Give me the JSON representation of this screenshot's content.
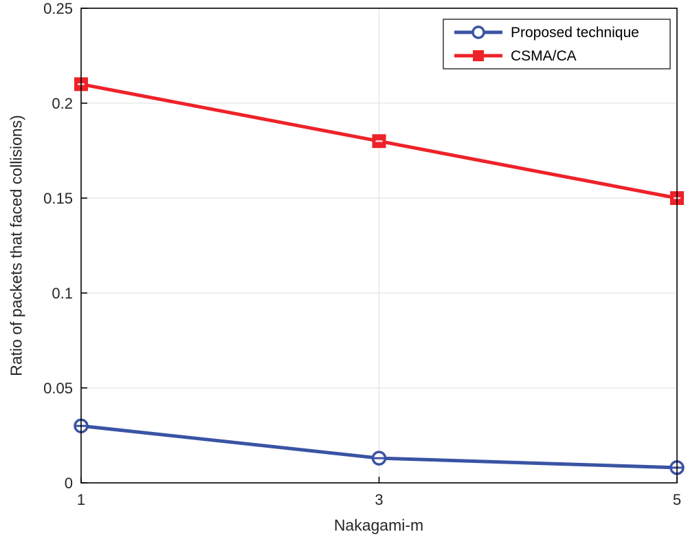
{
  "chart_data": {
    "type": "line",
    "x": [
      1,
      3,
      5
    ],
    "series": [
      {
        "name": "Proposed technique",
        "color": "#3a53a4",
        "marker": "circle",
        "values": [
          0.03,
          0.013,
          0.008
        ]
      },
      {
        "name": "CSMA/CA",
        "color": "#ee2229",
        "marker": "square",
        "values": [
          0.21,
          0.18,
          0.15
        ]
      }
    ],
    "title": "",
    "xlabel": "Nakagami-m",
    "ylabel": "Ratio of packets that faced collisions)",
    "xlim": [
      1,
      5
    ],
    "ylim": [
      0,
      0.25
    ],
    "xticks": [
      1,
      3,
      5
    ],
    "yticks": [
      0,
      0.05,
      0.1,
      0.15,
      0.2,
      0.25
    ],
    "grid": true,
    "grid_color": "#dcdcdc",
    "axis_color": "#000000",
    "tick_label_color": "#262626",
    "legend_position": "top-right",
    "legend_labels": [
      "Proposed technique",
      "CSMA/CA"
    ]
  }
}
